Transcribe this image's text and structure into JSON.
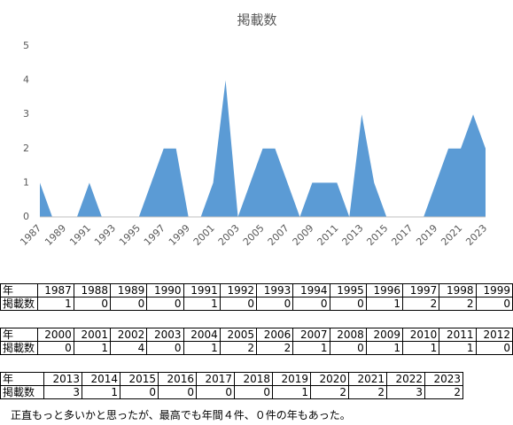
{
  "chart_data": {
    "type": "area",
    "title": "掲載数",
    "categories": [
      "1987",
      "1988",
      "1989",
      "1990",
      "1991",
      "1992",
      "1993",
      "1994",
      "1995",
      "1996",
      "1997",
      "1998",
      "1999",
      "2000",
      "2001",
      "2002",
      "2003",
      "2004",
      "2005",
      "2006",
      "2007",
      "2008",
      "2009",
      "2010",
      "2011",
      "2012",
      "2013",
      "2014",
      "2015",
      "2016",
      "2017",
      "2018",
      "2019",
      "2020",
      "2021",
      "2022",
      "2023"
    ],
    "values": [
      1,
      0,
      0,
      0,
      1,
      0,
      0,
      0,
      0,
      1,
      2,
      2,
      0,
      0,
      1,
      4,
      0,
      1,
      2,
      2,
      1,
      0,
      1,
      1,
      1,
      0,
      3,
      1,
      0,
      0,
      0,
      0,
      1,
      2,
      2,
      3,
      2
    ],
    "color": "#5b9bd5",
    "ylim": [
      0,
      5
    ],
    "yticks": [
      0,
      1,
      2,
      3,
      4,
      5
    ],
    "grid": false
  },
  "tables": [
    {
      "rows": [
        [
          "年",
          "1987",
          "1988",
          "1989",
          "1990",
          "1991",
          "1992",
          "1993",
          "1994",
          "1995",
          "1996",
          "1997",
          "1998",
          "1999"
        ],
        [
          "掲載数",
          1,
          0,
          0,
          0,
          1,
          0,
          0,
          0,
          0,
          1,
          2,
          2,
          0
        ]
      ]
    },
    {
      "rows": [
        [
          "年",
          "2000",
          "2001",
          "2002",
          "2003",
          "2004",
          "2005",
          "2006",
          "2007",
          "2008",
          "2009",
          "2010",
          "2011",
          "2012"
        ],
        [
          "掲載数",
          0,
          1,
          4,
          0,
          1,
          2,
          2,
          1,
          0,
          1,
          1,
          1,
          0
        ]
      ]
    },
    {
      "rows": [
        [
          "年",
          "2013",
          "2014",
          "2015",
          "2016",
          "2017",
          "2018",
          "2019",
          "2020",
          "2021",
          "2022",
          "2023"
        ],
        [
          "掲載数",
          3,
          1,
          0,
          0,
          0,
          0,
          1,
          2,
          2,
          3,
          2
        ]
      ]
    }
  ],
  "caption": "正直もっと多いかと思ったが、最高でも年間４件、０件の年もあった。"
}
